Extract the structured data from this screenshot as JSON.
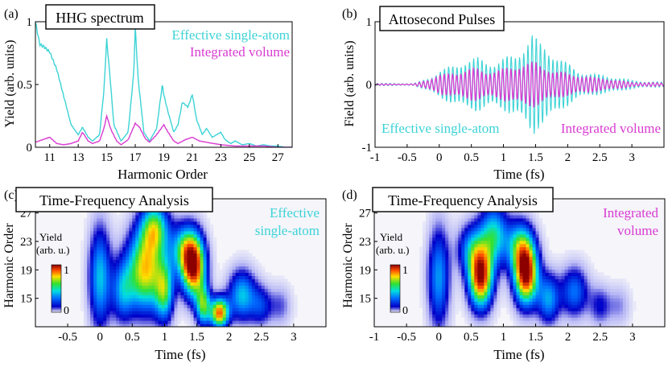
{
  "colors": {
    "single": "#3dd3d6",
    "integrated": "#d93bd1",
    "axis": "#000000"
  },
  "chart_data": [
    {
      "panel": "(a)",
      "type": "line",
      "title": "HHG spectrum",
      "xlabel": "Harmonic Order",
      "ylabel": "Yield (arb. units)",
      "xlim": [
        10,
        28
      ],
      "ylim": [
        0,
        1
      ],
      "xticks": [
        "11",
        "13",
        "15",
        "17",
        "19",
        "21",
        "23",
        "25",
        "27"
      ],
      "xtick_values": [
        11,
        13,
        15,
        17,
        19,
        21,
        23,
        25,
        27
      ],
      "yticks": [
        "0",
        "0.5",
        "1"
      ],
      "ytick_values": [
        0,
        0.5,
        1
      ],
      "legend": [
        "Effective single-atom",
        "Integrated volume"
      ],
      "series": [
        {
          "name": "Effective single-atom",
          "color": "#3dd3d6",
          "x": [
            10,
            10.3,
            10.6,
            11,
            11.5,
            12,
            12.5,
            13,
            13.3,
            13.7,
            14,
            14.5,
            14.8,
            15,
            15.2,
            15.5,
            16,
            16.5,
            16.9,
            17,
            17.2,
            17.6,
            18,
            18.5,
            18.9,
            19,
            19.3,
            19.7,
            20,
            20.3,
            20.7,
            21,
            21.3,
            21.7,
            22,
            22.4,
            23,
            23.3,
            23.7,
            24,
            24.5,
            25,
            25.5,
            26,
            26.5,
            27,
            27.5,
            28
          ],
          "y": [
            1.0,
            0.82,
            0.8,
            0.76,
            0.62,
            0.4,
            0.18,
            0.1,
            0.16,
            0.08,
            0.05,
            0.1,
            0.45,
            0.86,
            0.6,
            0.18,
            0.05,
            0.12,
            0.6,
            0.95,
            0.55,
            0.12,
            0.05,
            0.15,
            0.5,
            0.42,
            0.28,
            0.12,
            0.18,
            0.36,
            0.32,
            0.42,
            0.22,
            0.1,
            0.15,
            0.08,
            0.12,
            0.06,
            0.03,
            0.05,
            0.02,
            0.03,
            0.01,
            0.02,
            0.01,
            0.01,
            0.0,
            0.0
          ]
        },
        {
          "name": "Integrated volume",
          "color": "#d93bd1",
          "x": [
            10,
            10.5,
            11,
            11.5,
            12,
            12.5,
            13,
            13.3,
            13.7,
            14,
            14.5,
            14.8,
            15,
            15.3,
            15.7,
            16,
            16.5,
            17,
            17.3,
            17.7,
            18,
            18.5,
            19,
            19.3,
            19.7,
            20,
            20.5,
            21,
            21.5,
            22,
            23,
            24,
            25,
            26,
            27,
            28
          ],
          "y": [
            0.04,
            0.06,
            0.08,
            0.03,
            0.02,
            0.03,
            0.05,
            0.12,
            0.05,
            0.03,
            0.05,
            0.15,
            0.25,
            0.14,
            0.05,
            0.02,
            0.06,
            0.19,
            0.16,
            0.07,
            0.04,
            0.1,
            0.18,
            0.12,
            0.05,
            0.03,
            0.06,
            0.08,
            0.05,
            0.04,
            0.02,
            0.01,
            0.01,
            0.01,
            0.0,
            0.0
          ]
        }
      ]
    },
    {
      "panel": "(b)",
      "type": "line",
      "title": "Attosecond Pulses",
      "xlabel": "Time (fs)",
      "ylabel": "Field (arb. units)",
      "xlim": [
        -1,
        3.5
      ],
      "ylim": [
        -1,
        1
      ],
      "xticks": [
        "-1",
        "-0.5",
        "0",
        "0.5",
        "1",
        "1.5",
        "2",
        "2.5",
        "3"
      ],
      "xtick_values": [
        -1,
        -0.5,
        0,
        0.5,
        1,
        1.5,
        2,
        2.5,
        3
      ],
      "yticks": [
        "-1",
        "0",
        "1"
      ],
      "ytick_values": [
        -1,
        0,
        1
      ],
      "legend": [
        "Effective single-atom",
        "Integrated volume"
      ],
      "series": [
        {
          "name": "Effective single-atom",
          "color": "#3dd3d6",
          "carrier_period_fs": 0.065,
          "envelope_t": [
            -1,
            -0.4,
            -0.25,
            0,
            0.3,
            0.6,
            0.9,
            1.2,
            1.45,
            1.55,
            1.8,
            2.0,
            2.2,
            2.4,
            2.7,
            3.0,
            3.5
          ],
          "envelope_amp": [
            0.02,
            0.02,
            0.1,
            0.25,
            0.35,
            0.5,
            0.55,
            0.6,
            0.85,
            0.7,
            0.6,
            0.45,
            0.3,
            0.2,
            0.12,
            0.08,
            0.05
          ]
        },
        {
          "name": "Integrated volume",
          "color": "#d93bd1",
          "carrier_period_fs": 0.065,
          "envelope_t": [
            -1,
            -0.4,
            -0.25,
            0,
            0.3,
            0.6,
            0.9,
            1.2,
            1.5,
            1.8,
            2.0,
            2.2,
            2.4,
            2.7,
            3.0,
            3.5
          ],
          "envelope_amp": [
            0.01,
            0.01,
            0.08,
            0.15,
            0.22,
            0.35,
            0.3,
            0.33,
            0.38,
            0.3,
            0.25,
            0.18,
            0.12,
            0.08,
            0.05,
            0.03
          ]
        }
      ]
    },
    {
      "panel": "(c)",
      "type": "heatmap",
      "title": "Time-Frequency Analysis",
      "annotation": [
        "Effective",
        "single-atom"
      ],
      "xlabel": "Time (fs)",
      "ylabel": "Harmonic Order",
      "xlim": [
        -1,
        3.5
      ],
      "ylim": [
        11,
        29
      ],
      "xticks": [
        "-0.5",
        "0",
        "0.5",
        "1",
        "1.5",
        "2",
        "2.5",
        "3"
      ],
      "xtick_values": [
        -0.5,
        0,
        0.5,
        1,
        1.5,
        2,
        2.5,
        3
      ],
      "yticks": [
        "15",
        "19",
        "23",
        "27"
      ],
      "ytick_values": [
        15,
        19,
        23,
        27
      ],
      "colorbar": {
        "label": [
          "Yield",
          "(arb. u.)"
        ],
        "max": "1",
        "min": "0"
      },
      "blobs": [
        {
          "t": 0.0,
          "h": 18,
          "st": 0.12,
          "sh": 5.0,
          "a": 0.45
        },
        {
          "t": 0.35,
          "h": 16,
          "st": 0.12,
          "sh": 3.0,
          "a": 0.35
        },
        {
          "t": 0.7,
          "h": 19,
          "st": 0.2,
          "sh": 4.0,
          "a": 0.75
        },
        {
          "t": 0.85,
          "h": 25,
          "st": 0.15,
          "sh": 2.5,
          "a": 0.55
        },
        {
          "t": 1.0,
          "h": 16,
          "st": 0.1,
          "sh": 3.0,
          "a": 0.5
        },
        {
          "t": 1.45,
          "h": 19.5,
          "st": 0.13,
          "sh": 3.0,
          "a": 0.95
        },
        {
          "t": 1.3,
          "h": 22,
          "st": 0.15,
          "sh": 2.5,
          "a": 0.45
        },
        {
          "t": 1.6,
          "h": 14,
          "st": 0.08,
          "sh": 2.0,
          "a": 0.55
        },
        {
          "t": 1.85,
          "h": 13,
          "st": 0.1,
          "sh": 1.5,
          "a": 0.85
        },
        {
          "t": 2.2,
          "h": 15.5,
          "st": 0.15,
          "sh": 2.5,
          "a": 0.45
        },
        {
          "t": 2.5,
          "h": 14,
          "st": 0.12,
          "sh": 2.0,
          "a": 0.25
        },
        {
          "t": 2.8,
          "h": 14,
          "st": 0.12,
          "sh": 2.0,
          "a": 0.15
        }
      ]
    },
    {
      "panel": "(d)",
      "type": "heatmap",
      "title": "Time-Frequency Analysis",
      "annotation": [
        "Integrated",
        "volume"
      ],
      "xlabel": "Time (fs)",
      "ylabel": "Harmonic Order",
      "xlim": [
        -1,
        3.5
      ],
      "ylim": [
        11,
        29
      ],
      "xticks": [
        "-1",
        "-0.5",
        "0",
        "0.5",
        "1",
        "1.5",
        "2",
        "2.5",
        "3"
      ],
      "xtick_values": [
        -1,
        -0.5,
        0,
        0.5,
        1,
        1.5,
        2,
        2.5,
        3
      ],
      "yticks": [
        "15",
        "19",
        "23",
        "27"
      ],
      "ytick_values": [
        15,
        19,
        23,
        27
      ],
      "colorbar": {
        "label": [
          "Yield",
          "(arb. u.)"
        ],
        "max": "1",
        "min": "0"
      },
      "blobs": [
        {
          "t": 0.0,
          "h": 18,
          "st": 0.12,
          "sh": 5.0,
          "a": 0.4
        },
        {
          "t": 0.65,
          "h": 18,
          "st": 0.13,
          "sh": 3.0,
          "a": 0.95
        },
        {
          "t": 0.85,
          "h": 24,
          "st": 0.15,
          "sh": 3.0,
          "a": 0.5
        },
        {
          "t": 0.5,
          "h": 22,
          "st": 0.15,
          "sh": 2.5,
          "a": 0.35
        },
        {
          "t": 1.35,
          "h": 18.5,
          "st": 0.13,
          "sh": 3.0,
          "a": 1.0
        },
        {
          "t": 1.25,
          "h": 22.5,
          "st": 0.15,
          "sh": 2.5,
          "a": 0.45
        },
        {
          "t": 1.7,
          "h": 15,
          "st": 0.12,
          "sh": 2.5,
          "a": 0.4
        },
        {
          "t": 2.1,
          "h": 16,
          "st": 0.15,
          "sh": 2.5,
          "a": 0.35
        },
        {
          "t": 2.5,
          "h": 14,
          "st": 0.12,
          "sh": 2.0,
          "a": 0.2
        },
        {
          "t": 2.8,
          "h": 14,
          "st": 0.12,
          "sh": 2.0,
          "a": 0.12
        }
      ]
    }
  ]
}
